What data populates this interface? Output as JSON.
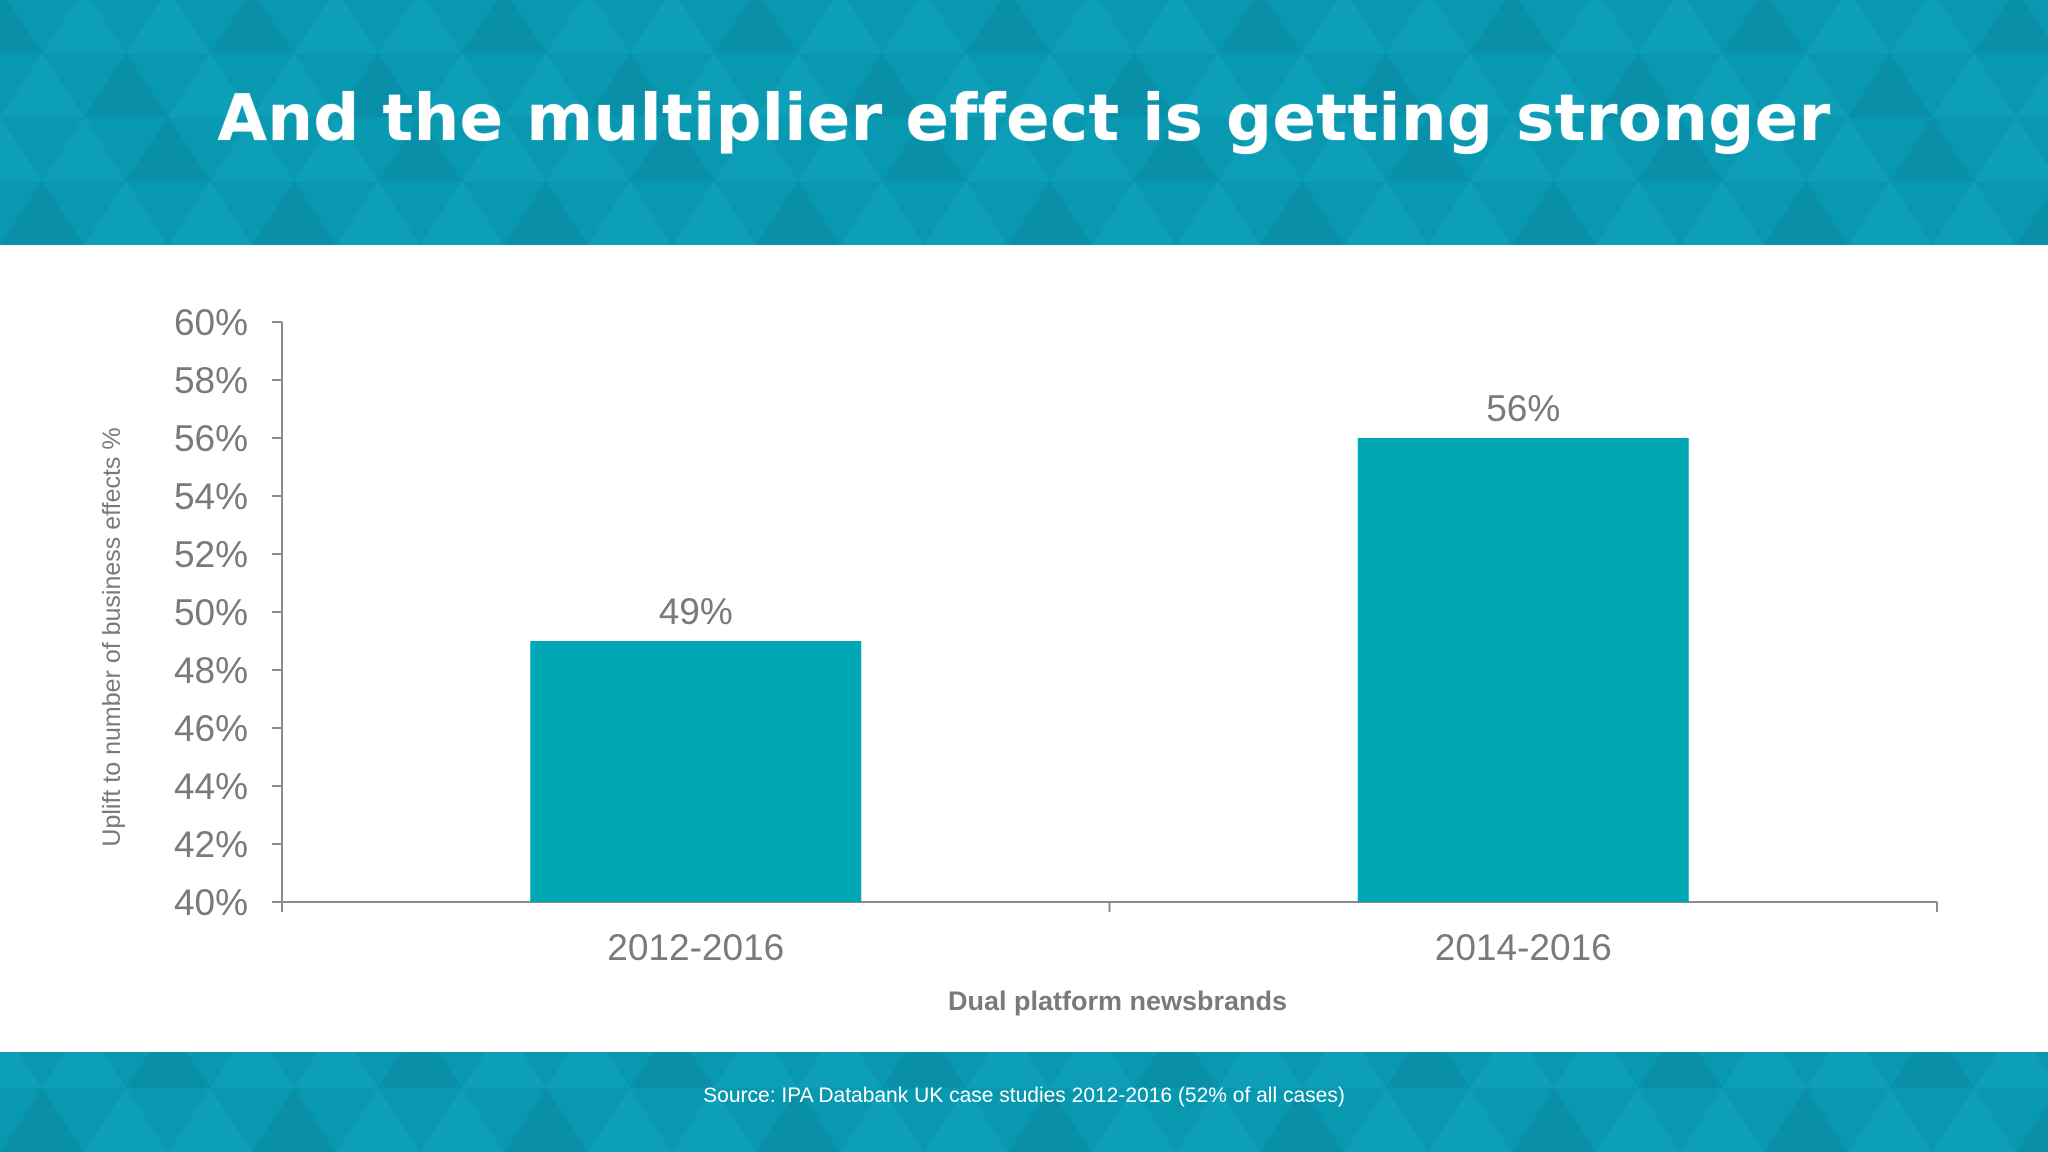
{
  "slide": {
    "title": "And the multiplier effect is getting stronger",
    "source": "Source: IPA Databank UK case studies 2012-2016 (52% of all cases)"
  },
  "colors": {
    "band": "#0898b0",
    "band_triangle_light": "#12a6bd",
    "band_triangle_dark": "#0b8aa2",
    "bar": "#00a7b5",
    "axis": "#8c8c8c",
    "text": "#7a7a7a"
  },
  "chart_data": {
    "type": "bar",
    "title": "",
    "categories": [
      "2012-2016",
      "2014-2016"
    ],
    "values": [
      49,
      56
    ],
    "data_labels": [
      "49%",
      "56%"
    ],
    "xlabel": "Dual platform newsbrands",
    "ylabel": "Uplift to number of business effects %",
    "ylim": [
      40,
      60
    ],
    "yticks": [
      40,
      42,
      44,
      46,
      48,
      50,
      52,
      54,
      56,
      58,
      60
    ],
    "ytick_labels": [
      "40%",
      "42%",
      "44%",
      "46%",
      "48%",
      "50%",
      "52%",
      "54%",
      "56%",
      "58%",
      "60%"
    ],
    "grid": false,
    "legend": "none"
  }
}
